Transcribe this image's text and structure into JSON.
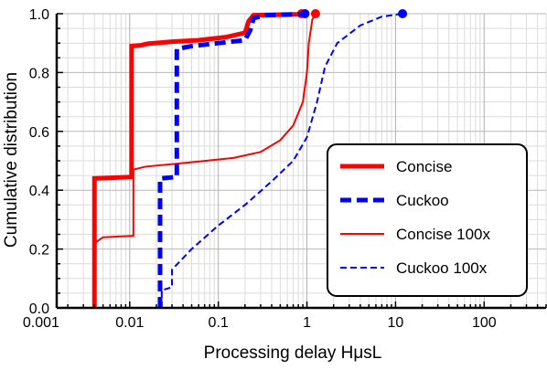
{
  "chart_data": {
    "type": "line",
    "xlabel": "Processing delay HμsL",
    "ylabel": "Cumulative distribution",
    "x_scale": "log",
    "xlim": [
      0.0015,
      500
    ],
    "ylim": [
      0,
      1.0
    ],
    "x_ticks": [
      {
        "value": 0.001,
        "label": "0.001"
      },
      {
        "value": 0.01,
        "label": "0.01"
      },
      {
        "value": 0.1,
        "label": "0.1"
      },
      {
        "value": 1,
        "label": "1"
      },
      {
        "value": 10,
        "label": "10"
      },
      {
        "value": 100,
        "label": "100"
      }
    ],
    "y_ticks": [
      {
        "value": 0.0,
        "label": "0.0"
      },
      {
        "value": 0.2,
        "label": "0.2"
      },
      {
        "value": 0.4,
        "label": "0.4"
      },
      {
        "value": 0.6,
        "label": "0.6"
      },
      {
        "value": 0.8,
        "label": "0.8"
      },
      {
        "value": 1.0,
        "label": "1.0"
      }
    ],
    "grid": true,
    "legend_position": "right",
    "series": [
      {
        "name": "Concise",
        "color": "#ff0000",
        "style": "solid-thick",
        "end_marker": true,
        "points": [
          [
            0.004,
            0
          ],
          [
            0.004,
            0.44
          ],
          [
            0.0105,
            0.445
          ],
          [
            0.0105,
            0.89
          ],
          [
            0.013,
            0.892
          ],
          [
            0.016,
            0.898
          ],
          [
            0.03,
            0.905
          ],
          [
            0.06,
            0.91
          ],
          [
            0.12,
            0.92
          ],
          [
            0.2,
            0.935
          ],
          [
            0.22,
            0.975
          ],
          [
            0.25,
            0.995
          ],
          [
            0.8,
            0.998
          ],
          [
            0.87,
            1.0
          ]
        ]
      },
      {
        "name": "Cuckoo",
        "color": "#0000ff",
        "style": "dashed-thick",
        "end_marker": true,
        "points": [
          [
            0.022,
            0
          ],
          [
            0.022,
            0.44
          ],
          [
            0.034,
            0.445
          ],
          [
            0.034,
            0.88
          ],
          [
            0.05,
            0.89
          ],
          [
            0.1,
            0.9
          ],
          [
            0.2,
            0.91
          ],
          [
            0.23,
            0.945
          ],
          [
            0.25,
            0.985
          ],
          [
            0.35,
            0.995
          ],
          [
            0.8,
            0.998
          ],
          [
            0.95,
            1.0
          ]
        ]
      },
      {
        "name": "Concise 100x",
        "color": "#ff0000",
        "style": "solid-thin",
        "end_marker": true,
        "points": [
          [
            0.004,
            0
          ],
          [
            0.004,
            0.22
          ],
          [
            0.005,
            0.24
          ],
          [
            0.011,
            0.245
          ],
          [
            0.011,
            0.47
          ],
          [
            0.015,
            0.48
          ],
          [
            0.05,
            0.495
          ],
          [
            0.15,
            0.51
          ],
          [
            0.3,
            0.53
          ],
          [
            0.5,
            0.57
          ],
          [
            0.7,
            0.62
          ],
          [
            0.9,
            0.7
          ],
          [
            1.0,
            0.8
          ],
          [
            1.05,
            0.9
          ],
          [
            1.15,
            0.98
          ],
          [
            1.25,
            1.0
          ]
        ]
      },
      {
        "name": "Cuckoo 100x",
        "color": "#0000ff",
        "style": "dashed-thin",
        "end_marker": true,
        "points": [
          [
            0.023,
            0
          ],
          [
            0.023,
            0.06
          ],
          [
            0.03,
            0.07
          ],
          [
            0.03,
            0.13
          ],
          [
            0.05,
            0.2
          ],
          [
            0.1,
            0.28
          ],
          [
            0.2,
            0.35
          ],
          [
            0.4,
            0.43
          ],
          [
            0.7,
            0.5
          ],
          [
            1.0,
            0.58
          ],
          [
            1.3,
            0.7
          ],
          [
            1.6,
            0.82
          ],
          [
            2.2,
            0.9
          ],
          [
            4,
            0.96
          ],
          [
            7,
            0.99
          ],
          [
            12,
            1.0
          ]
        ]
      }
    ]
  }
}
